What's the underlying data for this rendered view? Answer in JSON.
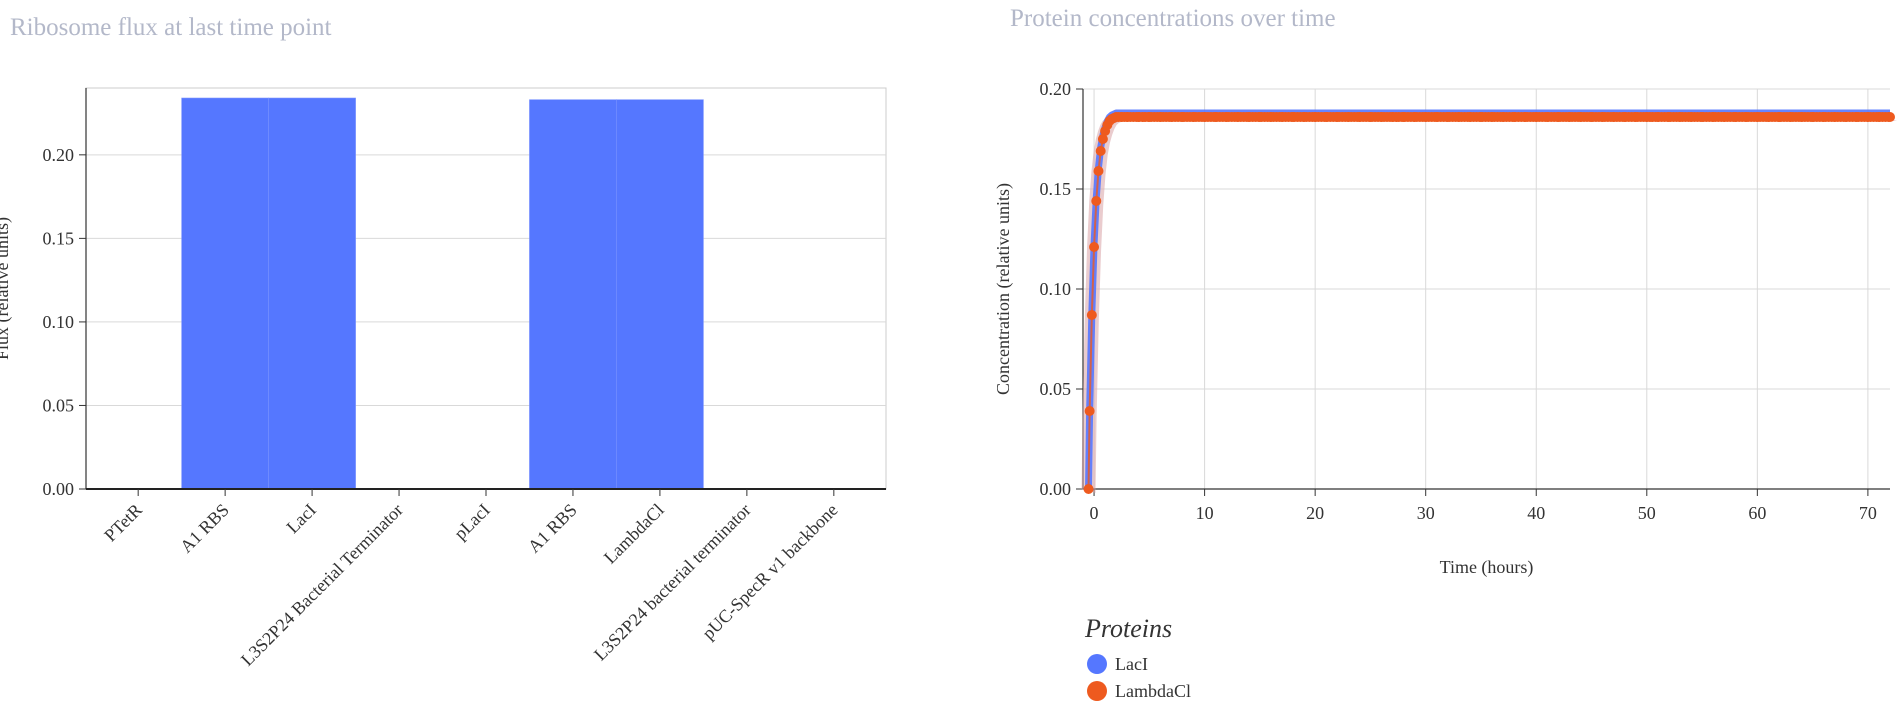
{
  "chart_data": [
    {
      "type": "bar",
      "title": "Ribosome flux at last time point",
      "xlabel": "",
      "ylabel": "Flux (relative units)",
      "ylim": [
        0,
        0.24
      ],
      "yticks": [
        "0.00",
        "0.05",
        "0.10",
        "0.15",
        "0.20"
      ],
      "grid": true,
      "categories": [
        "PTetR",
        "A1 RBS",
        "LacI",
        "L3S2P24 Bacterial Terminator",
        "pLacI",
        "A1 RBS",
        "LambdaCl",
        "L3S2P24 bacterial terminator",
        "pUC-SpecR v1 backbone"
      ],
      "values": [
        0,
        0.234,
        0.234,
        0,
        0,
        0.233,
        0.233,
        0,
        0
      ],
      "color": "#5577ff"
    },
    {
      "type": "line",
      "title": "Protein concentrations over time",
      "xlabel": "Time (hours)",
      "ylabel": "Concentration (relative units)",
      "xlim": [
        -1,
        72
      ],
      "ylim": [
        0,
        0.2
      ],
      "xticks": [
        "0",
        "10",
        "20",
        "30",
        "40",
        "50",
        "60",
        "70"
      ],
      "yticks": [
        "0.00",
        "0.05",
        "0.10",
        "0.15",
        "0.20"
      ],
      "grid": true,
      "legend": {
        "title": "Proteins",
        "placement": "bottom-left"
      },
      "series": [
        {
          "name": "LacI",
          "color": "#5577ff",
          "plateau": 0.188
        },
        {
          "name": "LambdaCl",
          "color": "#ee5a1f",
          "plateau": 0.186,
          "points_x": [
            -0.5,
            -0.4,
            -0.2,
            0.0,
            0.2,
            0.4,
            0.6,
            0.8,
            1.0,
            1.2,
            1.4,
            1.6,
            1.8,
            2.0,
            2.5,
            3,
            4,
            5,
            6,
            7,
            8,
            9,
            10,
            11,
            12,
            13,
            14,
            15,
            16,
            17,
            18,
            19,
            20,
            21,
            22,
            23,
            24,
            25,
            26,
            27,
            28,
            29,
            30,
            31,
            32,
            33,
            34,
            35,
            36,
            37,
            38,
            39,
            40,
            41,
            42,
            43,
            44,
            45,
            46,
            47,
            48,
            49,
            50,
            51,
            52,
            53,
            54,
            55,
            56,
            57,
            58,
            59,
            60,
            61,
            62,
            63,
            64,
            65,
            66,
            67,
            68,
            69,
            70,
            71,
            72
          ],
          "points_y": [
            0.0,
            0.039,
            0.087,
            0.121,
            0.144,
            0.159,
            0.169,
            0.175,
            0.179,
            0.182,
            0.184,
            0.185,
            0.1855,
            0.186,
            0.186,
            0.186,
            0.186,
            0.186,
            0.186,
            0.186,
            0.186,
            0.186,
            0.186,
            0.186,
            0.186,
            0.186,
            0.186,
            0.186,
            0.186,
            0.186,
            0.186,
            0.186,
            0.186,
            0.186,
            0.186,
            0.186,
            0.186,
            0.186,
            0.186,
            0.186,
            0.186,
            0.186,
            0.186,
            0.186,
            0.186,
            0.186,
            0.186,
            0.186,
            0.186,
            0.186,
            0.186,
            0.186,
            0.186,
            0.186,
            0.186,
            0.186,
            0.186,
            0.186,
            0.186,
            0.186,
            0.186,
            0.186,
            0.186,
            0.186,
            0.186,
            0.186,
            0.186,
            0.186,
            0.186,
            0.186,
            0.186,
            0.186,
            0.186,
            0.186,
            0.186,
            0.186,
            0.186,
            0.186,
            0.186,
            0.186,
            0.186,
            0.186,
            0.186,
            0.186,
            0.186,
            0.186,
            0.186
          ]
        }
      ]
    }
  ]
}
